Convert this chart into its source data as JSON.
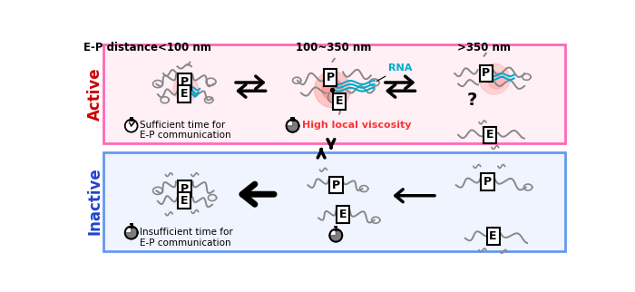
{
  "header_text": "E-P distance",
  "col1_label": "<100 nm",
  "col2_label": "100~350 nm",
  "col3_label": ">350 nm",
  "active_label": "Active",
  "inactive_label": "Inactive",
  "active_box_color": "#FF69B4",
  "inactive_box_color": "#6699EE",
  "active_label_color": "#CC0000",
  "inactive_label_color": "#2244CC",
  "rna_color": "#00AACC",
  "viscosity_color": "#FF3333",
  "bg_color": "#FFFFFF",
  "sufficient_text": "Sufficient time for\nE-P communication",
  "insufficient_text": "Insufficient time for\nE-P communication",
  "high_viscosity_text": "High local viscosity",
  "rna_text": "RNA",
  "question_mark": "?",
  "fig_width": 7.0,
  "fig_height": 3.22
}
